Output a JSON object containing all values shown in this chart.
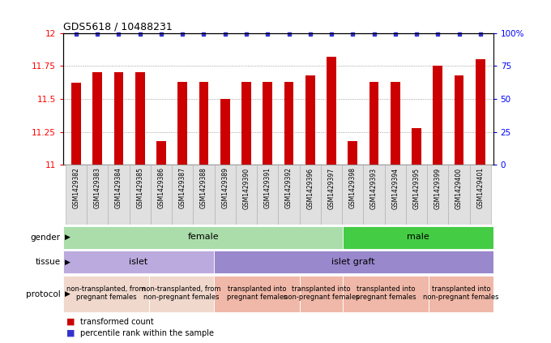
{
  "title": "GDS5618 / 10488231",
  "samples": [
    "GSM1429382",
    "GSM1429383",
    "GSM1429384",
    "GSM1429385",
    "GSM1429386",
    "GSM1429387",
    "GSM1429388",
    "GSM1429389",
    "GSM1429390",
    "GSM1429391",
    "GSM1429392",
    "GSM1429396",
    "GSM1429397",
    "GSM1429398",
    "GSM1429393",
    "GSM1429394",
    "GSM1429395",
    "GSM1429399",
    "GSM1429400",
    "GSM1429401"
  ],
  "bar_values": [
    11.62,
    11.7,
    11.7,
    11.7,
    11.18,
    11.63,
    11.63,
    11.5,
    11.63,
    11.63,
    11.63,
    11.68,
    11.82,
    11.18,
    11.63,
    11.63,
    11.28,
    11.75,
    11.68,
    11.8
  ],
  "ylim": [
    11.0,
    12.0
  ],
  "yticks_left": [
    11.0,
    11.25,
    11.5,
    11.75,
    12.0
  ],
  "ytick_labels_left": [
    "11",
    "11.25",
    "11.5",
    "11.75",
    "12"
  ],
  "ytick_labels_right": [
    "0",
    "25",
    "50",
    "75",
    "100%"
  ],
  "bar_color": "#cc0000",
  "dot_color": "#3333cc",
  "grid_color": "#888888",
  "bg_color": "#ffffff",
  "gender_data": [
    {
      "label": "female",
      "start": 0,
      "end": 13,
      "color": "#aaddaa"
    },
    {
      "label": "male",
      "start": 13,
      "end": 20,
      "color": "#44cc44"
    }
  ],
  "tissue_data": [
    {
      "label": "islet",
      "start": 0,
      "end": 7,
      "color": "#bbaadd"
    },
    {
      "label": "islet graft",
      "start": 7,
      "end": 20,
      "color": "#9988cc"
    }
  ],
  "protocol_data": [
    {
      "label": "non-transplanted, from\npregnant females",
      "start": 0,
      "end": 4,
      "color": "#f0d8cc"
    },
    {
      "label": "non-transplanted, from\nnon-pregnant females",
      "start": 4,
      "end": 7,
      "color": "#f0d8cc"
    },
    {
      "label": "transplanted into\npregnant females",
      "start": 7,
      "end": 11,
      "color": "#f0b8a8"
    },
    {
      "label": "transplanted into\nnon-pregnant females",
      "start": 11,
      "end": 13,
      "color": "#f0b8a8"
    },
    {
      "label": "transplanted into\npregnant females",
      "start": 13,
      "end": 17,
      "color": "#f0b8a8"
    },
    {
      "label": "transplanted into\nnon-pregnant females",
      "start": 17,
      "end": 20,
      "color": "#f0b8a8"
    }
  ]
}
